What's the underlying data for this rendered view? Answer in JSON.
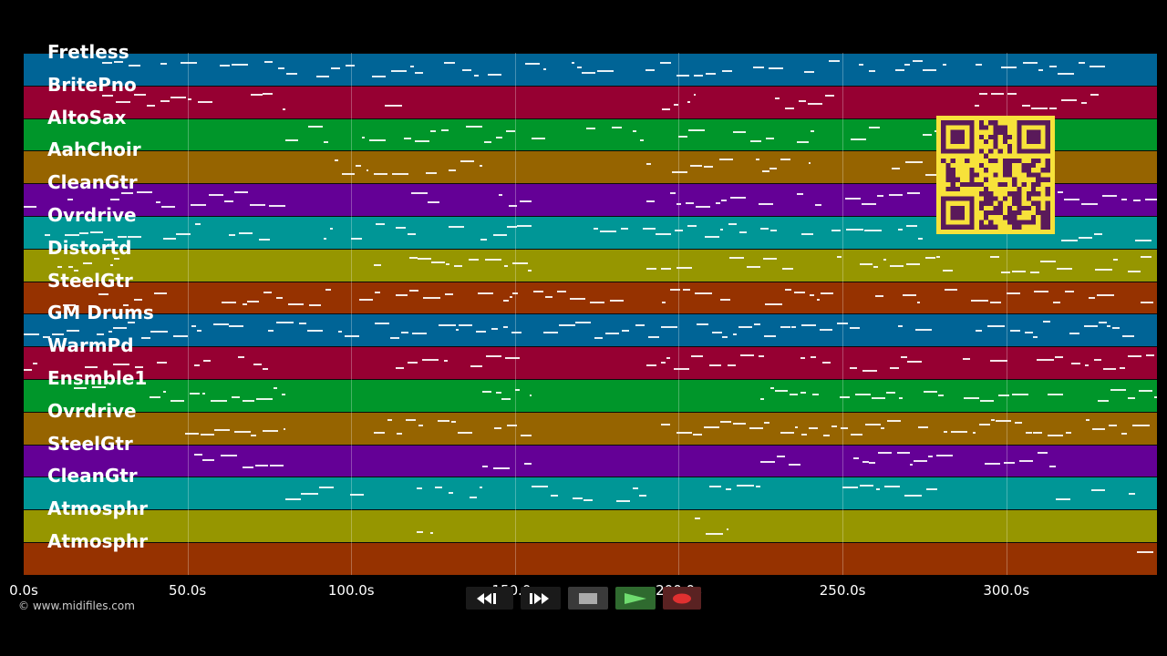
{
  "tracks": [
    {
      "name": "Fretless",
      "color": "#006496"
    },
    {
      "name": "BritePno",
      "color": "#960032"
    },
    {
      "name": "AltoSax",
      "color": "#00962a"
    },
    {
      "name": "AahChoir",
      "color": "#966400"
    },
    {
      "name": "CleanGtr",
      "color": "#640096"
    },
    {
      "name": "Ovrdrive",
      "color": "#009696"
    },
    {
      "name": "Distortd",
      "color": "#969600"
    },
    {
      "name": "SteelGtr",
      "color": "#963200"
    },
    {
      "name": "GM Drums",
      "color": "#006496"
    },
    {
      "name": "WarmPd",
      "color": "#960032"
    },
    {
      "name": "Ensmble1",
      "color": "#00962a"
    },
    {
      "name": "Ovrdrive",
      "color": "#966400"
    },
    {
      "name": "SteelGtr",
      "color": "#640096"
    },
    {
      "name": "CleanGtr",
      "color": "#009696"
    },
    {
      "name": "Atmosphr",
      "color": "#969600"
    },
    {
      "name": "Atmosphr",
      "color": "#963200"
    }
  ],
  "time_axis": {
    "max_seconds": 346,
    "ticks": [
      {
        "t": 0,
        "label": "0.0s"
      },
      {
        "t": 50,
        "label": "50.0s"
      },
      {
        "t": 100,
        "label": "100.0s"
      },
      {
        "t": 150,
        "label": "150.0s"
      },
      {
        "t": 200,
        "label": "200.0s"
      },
      {
        "t": 250,
        "label": "250.0s"
      },
      {
        "t": 300,
        "label": "300.0s"
      }
    ]
  },
  "copyright": "© www.midifiles.com",
  "transport": {
    "rewind_icon": "rewind-icon",
    "fast_forward_icon": "fast-forward-icon",
    "stop_icon": "stop-icon",
    "play_icon": "play-icon",
    "record_icon": "record-icon"
  },
  "qr_code_icon": "qr-code-icon"
}
